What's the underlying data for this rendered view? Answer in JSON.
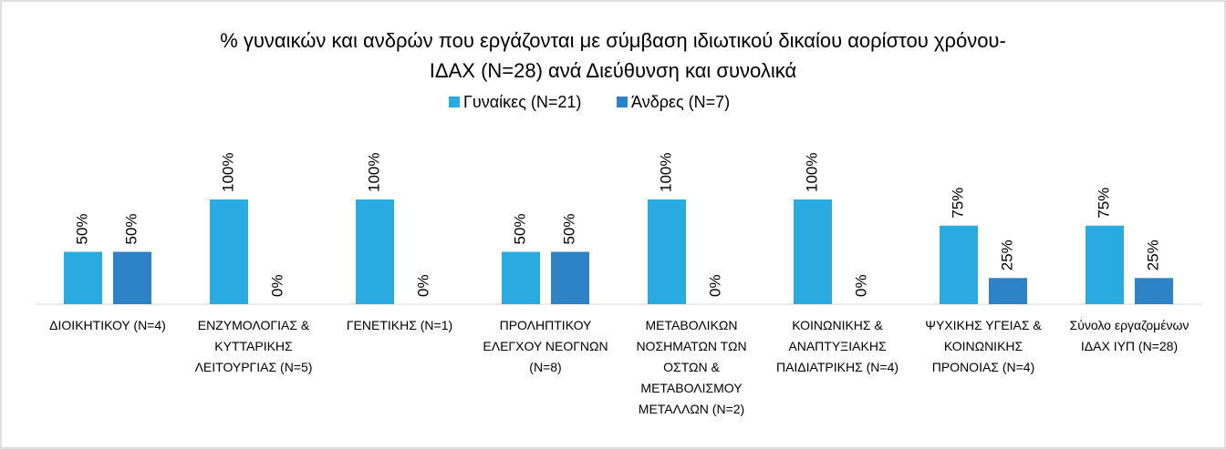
{
  "chart_data": {
    "type": "bar",
    "title": [
      "% γυναικών και ανδρών που εργάζονται με σύμβαση ιδιωτικού δικαίου αορίστου χρόνου-",
      "ΙΔΑΧ (Ν=28) ανά Διεύθυνση και συνολικά"
    ],
    "categories": [
      "ΔΙΟΙΚΗΤΙΚΟΥ (Ν=4)",
      "ΕΝΖΥΜΟΛΟΓΙΑΣ & ΚΥΤΤΑΡΙΚΗΣ ΛΕΙΤΟΥΡΓΙΑΣ (Ν=5)",
      "ΓΕΝΕΤΙΚΗΣ (Ν=1)",
      "ΠΡΟΛΗΠΤΙΚΟΥ ΕΛΕΓΧΟΥ ΝΕΟΓΝΩΝ (Ν=8)",
      "ΜΕΤΑΒΟΛΙΚΩΝ ΝΟΣΗΜΑΤΩΝ ΤΩΝ ΟΣΤΩΝ & ΜΕΤΑΒΟΛΙΣΜΟΥ ΜΕΤΑΛΛΩΝ (Ν=2)",
      "ΚΟΙΝΩΝΙΚΗΣ & ΑΝΑΠΤΥΞΙΑΚΗΣ ΠΑΙΔΙΑΤΡΙΚΗΣ (Ν=4)",
      "ΨΥΧΙΚΗΣ ΥΓΕΙΑΣ & ΚΟΙΝΩΝΙΚΗΣ ΠΡΟΝΟΙΑΣ (Ν=4)",
      "Σύνολο εργαζομένων ΙΔΑΧ ΙΥΠ (Ν=28)"
    ],
    "series": [
      {
        "name": "Γυναίκες (Ν=21)",
        "color": "#29abe2",
        "values": [
          50,
          100,
          100,
          50,
          100,
          100,
          75,
          75
        ],
        "value_labels": [
          "50%",
          "100%",
          "100%",
          "50%",
          "100%",
          "100%",
          "75%",
          "75%"
        ]
      },
      {
        "name": "Άνδρες (Ν=7)",
        "color": "#2e83c6",
        "values": [
          50,
          0,
          0,
          50,
          0,
          0,
          25,
          25
        ],
        "value_labels": [
          "50%",
          "0%",
          "0%",
          "50%",
          "0%",
          "0%",
          "25%",
          "25%"
        ]
      }
    ],
    "ylim": [
      0,
      160
    ],
    "legend": "top"
  }
}
